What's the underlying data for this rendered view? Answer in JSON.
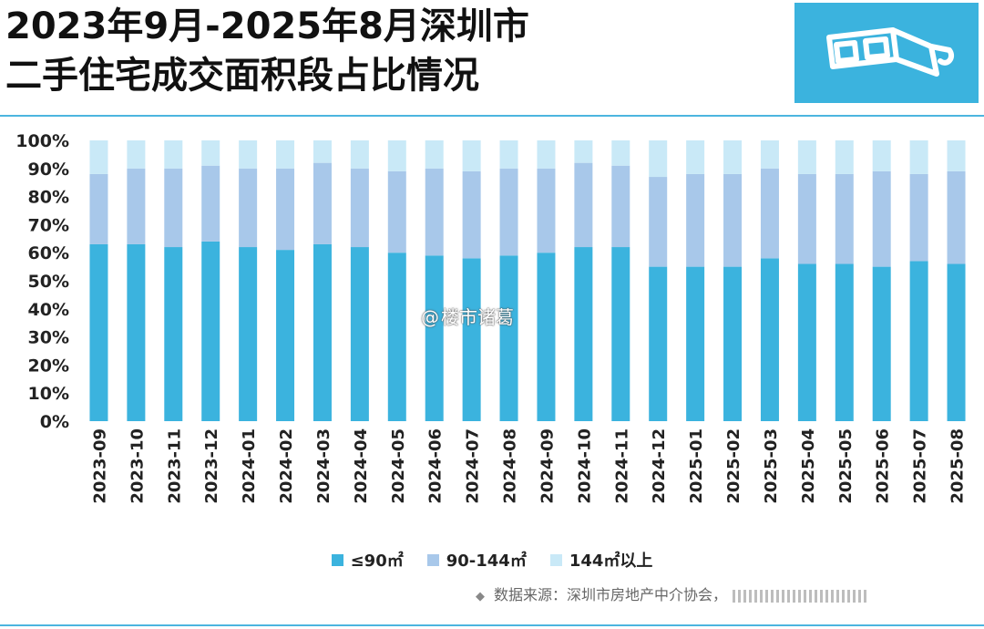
{
  "header": {
    "title_line1": "2023年9月-2025年8月深圳市",
    "title_line2": "二手住宅成交面积段占比情况"
  },
  "logo": {
    "icon": "3d-glasses-icon",
    "background": "#3bb3de"
  },
  "chart_data": {
    "type": "bar",
    "stacked": true,
    "categories": [
      "2023-09",
      "2023-10",
      "2023-11",
      "2023-12",
      "2024-01",
      "2024-02",
      "2024-03",
      "2024-04",
      "2024-05",
      "2024-06",
      "2024-07",
      "2024-08",
      "2024-09",
      "2024-10",
      "2024-11",
      "2024-12",
      "2025-01",
      "2025-02",
      "2025-03",
      "2025-04",
      "2025-05",
      "2025-06",
      "2025-07",
      "2025-08"
    ],
    "series": [
      {
        "name": "≤90㎡",
        "color": "#3bb3de",
        "values": [
          63,
          63,
          62,
          64,
          62,
          61,
          63,
          62,
          60,
          59,
          58,
          59,
          60,
          62,
          62,
          55,
          55,
          55,
          58,
          56,
          56,
          55,
          57,
          56
        ]
      },
      {
        "name": "90-144㎡",
        "color": "#a8c8ea",
        "values": [
          25,
          27,
          28,
          27,
          28,
          29,
          29,
          28,
          29,
          31,
          31,
          31,
          30,
          30,
          29,
          32,
          33,
          33,
          32,
          32,
          32,
          34,
          31,
          33
        ]
      },
      {
        "name": "144㎡以上",
        "color": "#c9e9f7",
        "values": [
          12,
          10,
          10,
          9,
          10,
          10,
          8,
          10,
          11,
          10,
          11,
          10,
          10,
          8,
          9,
          13,
          12,
          12,
          10,
          12,
          12,
          11,
          12,
          11
        ]
      }
    ],
    "ylim": [
      0,
      100
    ],
    "yticks": [
      "0%",
      "10%",
      "20%",
      "30%",
      "40%",
      "50%",
      "60%",
      "70%",
      "80%",
      "90%",
      "100%"
    ],
    "legend_position": "bottom",
    "grid": false
  },
  "footer": {
    "source_label": "数据来源：深圳市房地产中介协会，"
  },
  "watermark": {
    "at": "@",
    "text": "楼市诸葛"
  }
}
